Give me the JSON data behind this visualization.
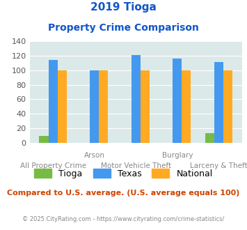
{
  "title_line1": "2019 Tioga",
  "title_line2": "Property Crime Comparison",
  "categories": [
    "All Property Crime",
    "Arson",
    "Motor Vehicle Theft",
    "Burglary",
    "Larceny & Theft"
  ],
  "x_labels_top": [
    "",
    "Arson",
    "",
    "Burglary",
    ""
  ],
  "x_labels_bottom": [
    "All Property Crime",
    "",
    "Motor Vehicle Theft",
    "",
    "Larceny & Theft"
  ],
  "tioga": [
    9,
    0,
    0,
    0,
    13
  ],
  "texas": [
    114,
    100,
    121,
    116,
    111
  ],
  "national": [
    100,
    100,
    100,
    100,
    100
  ],
  "tioga_color": "#77bb44",
  "texas_color": "#4499ee",
  "national_color": "#ffaa22",
  "bg_color": "#dce9e9",
  "title_color": "#1155cc",
  "xlabel_color": "#888888",
  "note_color": "#cc4400",
  "copyright_color": "#888888",
  "ylim": [
    0,
    140
  ],
  "yticks": [
    0,
    20,
    40,
    60,
    80,
    100,
    120,
    140
  ],
  "note": "Compared to U.S. average. (U.S. average equals 100)",
  "copyright": "© 2025 CityRating.com - https://www.cityrating.com/crime-statistics/"
}
